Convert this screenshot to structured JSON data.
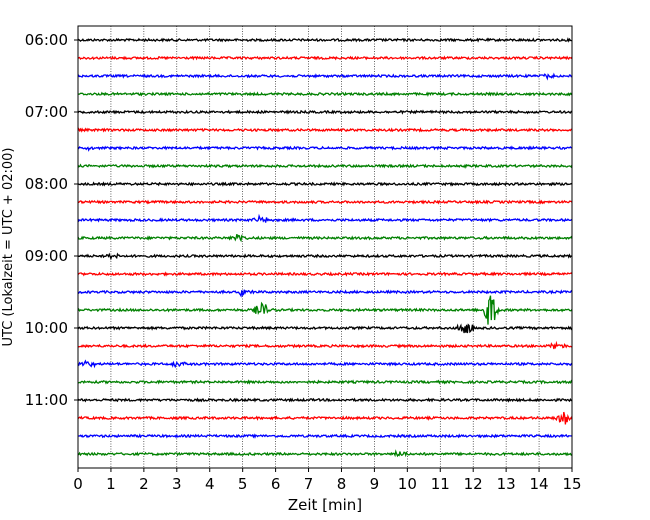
{
  "chart_data": {
    "type": "line",
    "title": "",
    "xlabel": "Zeit  [min]",
    "ylabel": "UTC (Lokalzeit = UTC + 02:00)",
    "xlim": [
      0,
      15
    ],
    "x_ticks": [
      "0",
      "1",
      "2",
      "3",
      "4",
      "5",
      "6",
      "7",
      "8",
      "9",
      "10",
      "11",
      "12",
      "13",
      "14",
      "15"
    ],
    "y_tick_labels": [
      "06:00",
      "07:00",
      "08:00",
      "09:00",
      "10:00",
      "11:00"
    ],
    "vertical_grid": true,
    "trace_colors": [
      "#000000",
      "#ff0000",
      "#0000ff",
      "#008000"
    ],
    "traces": [
      {
        "start": "06:00",
        "color": "#000000",
        "events": []
      },
      {
        "start": "06:15",
        "color": "#ff0000",
        "events": []
      },
      {
        "start": "06:30",
        "color": "#0000ff",
        "events": [
          {
            "t": 14.2,
            "amp": 2
          }
        ]
      },
      {
        "start": "06:45",
        "color": "#008000",
        "events": []
      },
      {
        "start": "07:00",
        "color": "#000000",
        "events": []
      },
      {
        "start": "07:15",
        "color": "#ff0000",
        "events": []
      },
      {
        "start": "07:30",
        "color": "#0000ff",
        "events": [
          {
            "t": 0.4,
            "amp": 2
          }
        ]
      },
      {
        "start": "07:45",
        "color": "#008000",
        "events": []
      },
      {
        "start": "08:00",
        "color": "#000000",
        "events": []
      },
      {
        "start": "08:15",
        "color": "#ff0000",
        "events": []
      },
      {
        "start": "08:30",
        "color": "#0000ff",
        "events": [
          {
            "t": 5.6,
            "amp": 4
          }
        ]
      },
      {
        "start": "08:45",
        "color": "#008000",
        "events": [
          {
            "t": 4.9,
            "amp": 4
          }
        ]
      },
      {
        "start": "09:00",
        "color": "#000000",
        "events": [
          {
            "t": 1.1,
            "amp": 4
          }
        ]
      },
      {
        "start": "09:15",
        "color": "#ff0000",
        "events": []
      },
      {
        "start": "09:30",
        "color": "#0000ff",
        "events": [
          {
            "t": 5.0,
            "amp": 4
          }
        ]
      },
      {
        "start": "09:45",
        "color": "#008000",
        "events": [
          {
            "t": 5.6,
            "amp": 7
          },
          {
            "t": 12.5,
            "amp": 18
          }
        ]
      },
      {
        "start": "10:00",
        "color": "#000000",
        "events": [
          {
            "t": 11.8,
            "amp": 7
          }
        ]
      },
      {
        "start": "10:15",
        "color": "#ff0000",
        "events": [
          {
            "t": 14.5,
            "amp": 4
          }
        ]
      },
      {
        "start": "10:30",
        "color": "#0000ff",
        "events": [
          {
            "t": 0.3,
            "amp": 4
          },
          {
            "t": 3.0,
            "amp": 3
          }
        ]
      },
      {
        "start": "10:45",
        "color": "#008000",
        "events": []
      },
      {
        "start": "11:00",
        "color": "#000000",
        "events": []
      },
      {
        "start": "11:15",
        "color": "#ff0000",
        "events": [
          {
            "t": 14.8,
            "amp": 6
          }
        ]
      },
      {
        "start": "11:30",
        "color": "#0000ff",
        "events": []
      },
      {
        "start": "11:45",
        "color": "#008000",
        "events": [
          {
            "t": 9.8,
            "amp": 3
          }
        ]
      }
    ]
  }
}
